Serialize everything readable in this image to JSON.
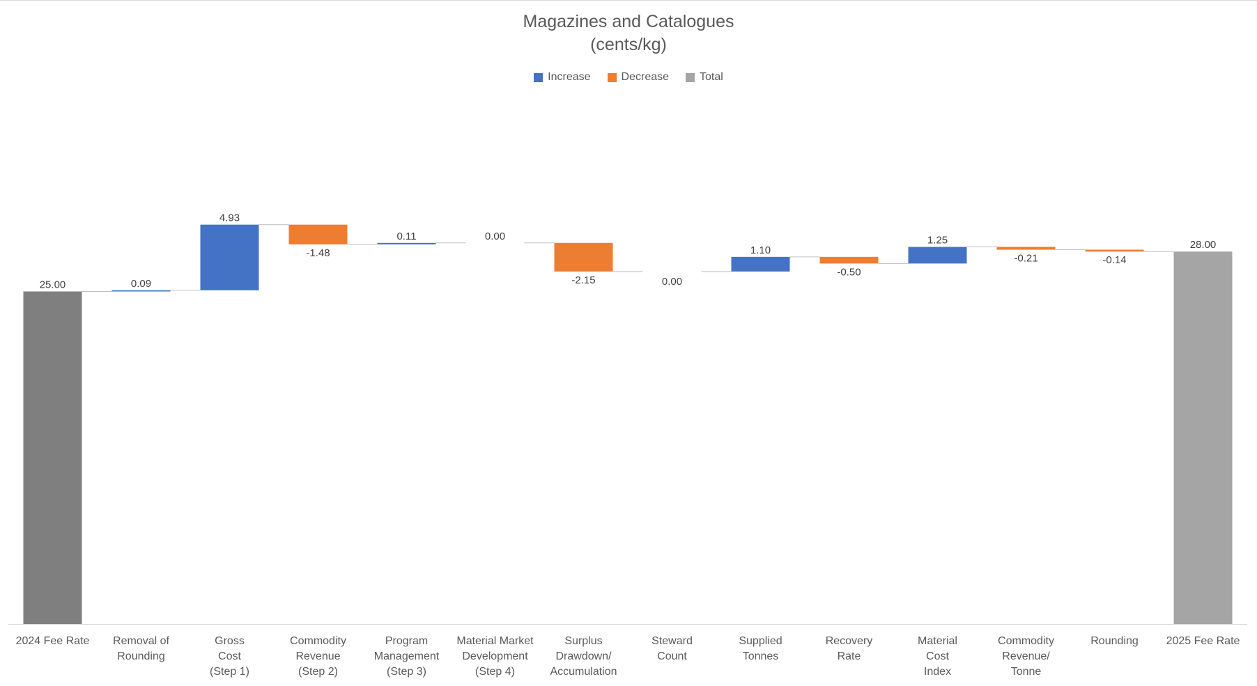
{
  "chart_data": {
    "type": "waterfall",
    "title": "Magazines and Catalogues",
    "subtitle": "(cents/kg)",
    "legend": [
      {
        "label": "Increase",
        "color": "#4472c4"
      },
      {
        "label": "Decrease",
        "color": "#ed7d31"
      },
      {
        "label": "Total",
        "color": "#a5a5a5"
      }
    ],
    "legend_position": "top-center",
    "grid": false,
    "categories": [
      [
        "2024 Fee Rate"
      ],
      [
        "Removal of",
        "Rounding"
      ],
      [
        "Gross",
        "Cost",
        "(Step 1)"
      ],
      [
        "Commodity",
        "Revenue",
        "(Step 2)"
      ],
      [
        "Program",
        "Management",
        "(Step 3)"
      ],
      [
        "Material Market",
        "Development",
        "(Step 4)"
      ],
      [
        "Surplus",
        "Drawdown/",
        "Accumulation"
      ],
      [
        "Steward",
        "Count"
      ],
      [
        "Supplied",
        "Tonnes"
      ],
      [
        "Recovery",
        "Rate"
      ],
      [
        "Material",
        "Cost",
        "Index"
      ],
      [
        "Commodity",
        "Revenue/",
        "Tonne"
      ],
      [
        "Rounding"
      ],
      [
        "2025 Fee Rate"
      ]
    ],
    "values": [
      25.0,
      0.09,
      4.93,
      -1.48,
      0.11,
      0.0,
      -2.15,
      0.0,
      1.1,
      -0.5,
      1.25,
      -0.21,
      -0.14,
      28.0
    ],
    "labels": [
      "25.00",
      "0.09",
      "4.93",
      "-1.48",
      "0.11",
      "0.00",
      "-2.15",
      "0.00",
      "1.10",
      "-0.50",
      "1.25",
      "-0.21",
      "-0.14",
      "28.00"
    ],
    "kinds": [
      "total-start",
      "increase",
      "increase",
      "decrease",
      "increase",
      "increase",
      "decrease",
      "increase",
      "increase",
      "decrease",
      "increase",
      "decrease",
      "decrease",
      "total"
    ],
    "colors": {
      "increase": "#4472c4",
      "decrease": "#ed7d31",
      "total": "#a5a5a5",
      "total_start": "#7f7f7f",
      "connector": "#bfbfbf",
      "axis": "#d9d9d9",
      "text": "#595959"
    },
    "ylim": [
      0,
      28
    ]
  }
}
